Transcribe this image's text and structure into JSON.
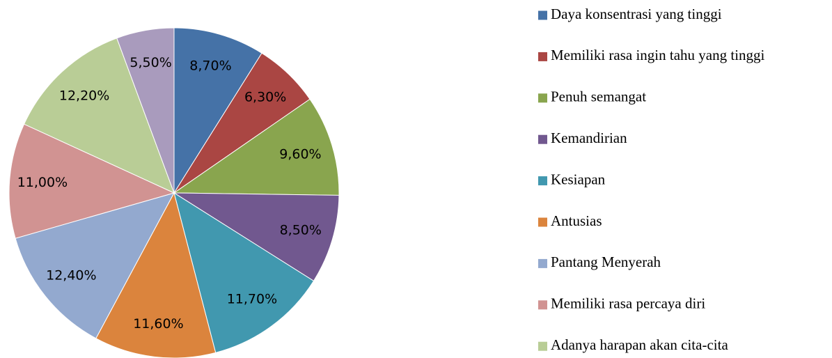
{
  "chart_data": {
    "type": "pie",
    "categories": [
      "Daya konsentrasi yang tinggi",
      "Memiliki rasa ingin tahu yang tinggi",
      "Penuh semangat",
      "Kemandirian",
      "Kesiapan",
      "Antusias",
      "Pantang Menyerah",
      "Memiliki rasa percaya diri",
      "Adanya harapan akan cita-cita",
      null
    ],
    "values": [
      8.7,
      6.3,
      9.6,
      8.5,
      11.7,
      11.6,
      12.4,
      11.0,
      12.2,
      5.5
    ],
    "value_labels": [
      "8,70%",
      "6,30%",
      "9,60%",
      "8,50%",
      "11,70%",
      "11,60%",
      "12,40%",
      "11,00%",
      "12,20%",
      "5,50%"
    ],
    "colors": [
      "#4572a7",
      "#aa4643",
      "#89a54e",
      "#71588f",
      "#4198af",
      "#db843d",
      "#93a9cf",
      "#d19392",
      "#b9cd96",
      "#a99bbd"
    ],
    "legend": "right"
  }
}
